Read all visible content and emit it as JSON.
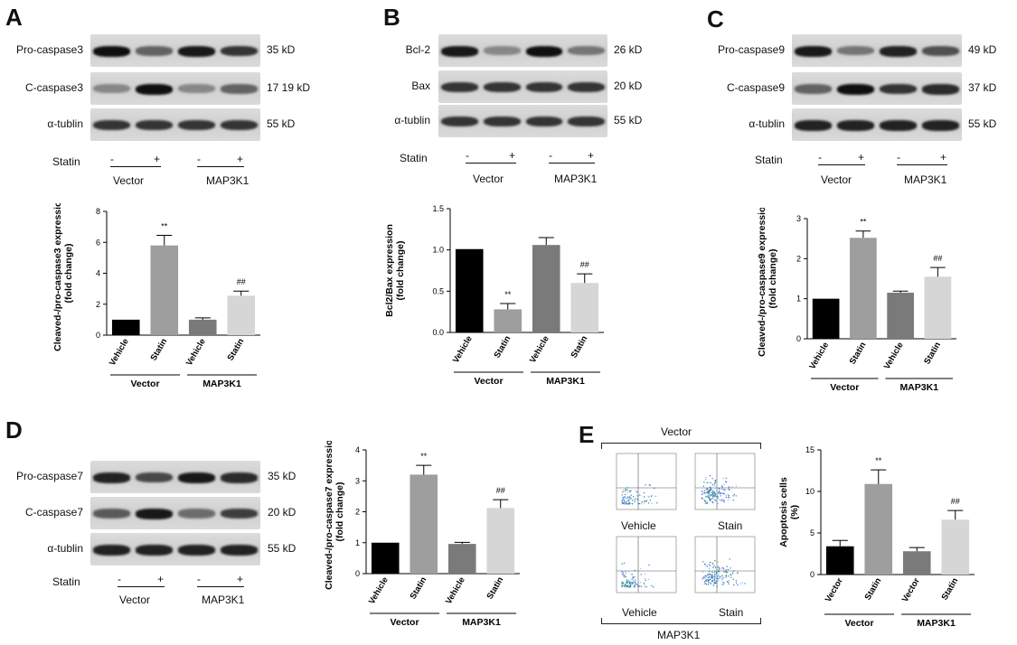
{
  "panels": {
    "A": {
      "label": "A",
      "blot_rows": [
        "Pro-caspase3",
        "C-caspase3",
        "α-tublin"
      ],
      "kd": [
        "35 kD",
        "17 19 kD",
        "55 kD"
      ],
      "statin_label": "Statin",
      "lanes": [
        "-",
        "+",
        "-",
        "+"
      ],
      "groups": [
        "Vector",
        "MAP3K1"
      ]
    },
    "B": {
      "label": "B",
      "blot_rows": [
        "Bcl-2",
        "Bax",
        "α-tublin"
      ],
      "kd": [
        "26 kD",
        "20 kD",
        "55 kD"
      ],
      "statin_label": "Statin",
      "lanes": [
        "-",
        "+",
        "-",
        "+"
      ],
      "groups": [
        "Vector",
        "MAP3K1"
      ]
    },
    "C": {
      "label": "C",
      "blot_rows": [
        "Pro-caspase9",
        "C-caspase9",
        "α-tublin"
      ],
      "kd": [
        "49 kD",
        "37 kD",
        "55 kD"
      ],
      "statin_label": "Statin",
      "lanes": [
        "-",
        "+",
        "-",
        "+"
      ],
      "groups": [
        "Vector",
        "MAP3K1"
      ]
    },
    "D": {
      "label": "D",
      "blot_rows": [
        "Pro-caspase7",
        "C-caspase7",
        "α-tublin"
      ],
      "kd": [
        "35 kD",
        "20 kD",
        "55 kD"
      ],
      "statin_label": "Statin",
      "lanes": [
        "-",
        "+",
        "-",
        "+"
      ],
      "groups": [
        "Vector",
        "MAP3K1"
      ]
    },
    "E": {
      "label": "E",
      "flow_top": "Vector",
      "flow_bottom": "MAP3K1",
      "flow_captions": [
        "Vehicle",
        "Stain",
        "Vehicle",
        "Stain"
      ]
    }
  },
  "chart_data": [
    {
      "id": "A",
      "type": "bar",
      "categories": [
        "Vehicle",
        "Statin",
        "Vehicle",
        "Statin"
      ],
      "values": [
        1.0,
        5.8,
        1.0,
        2.55
      ],
      "errors": [
        0,
        0.65,
        0.12,
        0.3
      ],
      "sig": [
        "",
        "**",
        "",
        "##"
      ],
      "ylabel": [
        "Cleaved-/pro-caspase3 expression",
        "(fold change)"
      ],
      "ylim": [
        0,
        8
      ],
      "yticks": [
        "0",
        "2",
        "4",
        "6",
        "8"
      ],
      "groups": [
        "Vector",
        "MAP3K1"
      ],
      "colors": [
        "#000000",
        "#9e9e9e",
        "#7a7a7a",
        "#d6d6d6"
      ]
    },
    {
      "id": "B",
      "type": "bar",
      "categories": [
        "Vehicle",
        "Statin",
        "Vehicle",
        "Statin"
      ],
      "values": [
        1.01,
        0.28,
        1.06,
        0.6
      ],
      "errors": [
        0,
        0.07,
        0.09,
        0.11
      ],
      "sig": [
        "",
        "**",
        "",
        "##"
      ],
      "ylabel": [
        "Bcl2/Bax expression",
        "(fold change)"
      ],
      "ylim": [
        0,
        1.5
      ],
      "yticks": [
        "0.0",
        "0.5",
        "1.0",
        "1.5"
      ],
      "groups": [
        "Vector",
        "MAP3K1"
      ],
      "colors": [
        "#000000",
        "#9e9e9e",
        "#7a7a7a",
        "#d6d6d6"
      ]
    },
    {
      "id": "C",
      "type": "bar",
      "categories": [
        "Vehicle",
        "Statin",
        "Vehicle",
        "Statin"
      ],
      "values": [
        1.0,
        2.52,
        1.15,
        1.55
      ],
      "errors": [
        0,
        0.17,
        0.04,
        0.23
      ],
      "sig": [
        "",
        "**",
        "",
        "##"
      ],
      "ylabel": [
        "Cleaved-/pro-caspase9 expression",
        "(fold change)"
      ],
      "ylim": [
        0,
        3
      ],
      "yticks": [
        "0",
        "1",
        "2",
        "3"
      ],
      "groups": [
        "Vector",
        "MAP3K1"
      ],
      "colors": [
        "#000000",
        "#9e9e9e",
        "#7a7a7a",
        "#d6d6d6"
      ]
    },
    {
      "id": "D",
      "type": "bar",
      "categories": [
        "Vehicle",
        "Statin",
        "Vehicle",
        "Statin"
      ],
      "values": [
        1.0,
        3.2,
        0.96,
        2.12
      ],
      "errors": [
        0,
        0.3,
        0.05,
        0.27
      ],
      "sig": [
        "",
        "**",
        "",
        "##"
      ],
      "ylabel": [
        "Cleaved-/pro-caspase7 expression",
        "(fold change)"
      ],
      "ylim": [
        0,
        4
      ],
      "yticks": [
        "0",
        "1",
        "2",
        "3",
        "4"
      ],
      "groups": [
        "Vector",
        "MAP3K1"
      ],
      "colors": [
        "#000000",
        "#9e9e9e",
        "#7a7a7a",
        "#d6d6d6"
      ]
    },
    {
      "id": "E",
      "type": "bar",
      "categories": [
        "Vector",
        "Statin",
        "Vector",
        "Statin"
      ],
      "values": [
        3.4,
        10.9,
        2.8,
        6.6
      ],
      "errors": [
        0.7,
        1.7,
        0.45,
        1.1
      ],
      "sig": [
        "",
        "**",
        "",
        "##"
      ],
      "ylabel": [
        "Apoptosis cells",
        "(%)"
      ],
      "ylim": [
        0,
        15
      ],
      "yticks": [
        "0",
        "5",
        "10",
        "15"
      ],
      "groups": [
        "Vector",
        "MAP3K1"
      ],
      "colors": [
        "#000000",
        "#9e9e9e",
        "#7a7a7a",
        "#d6d6d6"
      ]
    }
  ]
}
